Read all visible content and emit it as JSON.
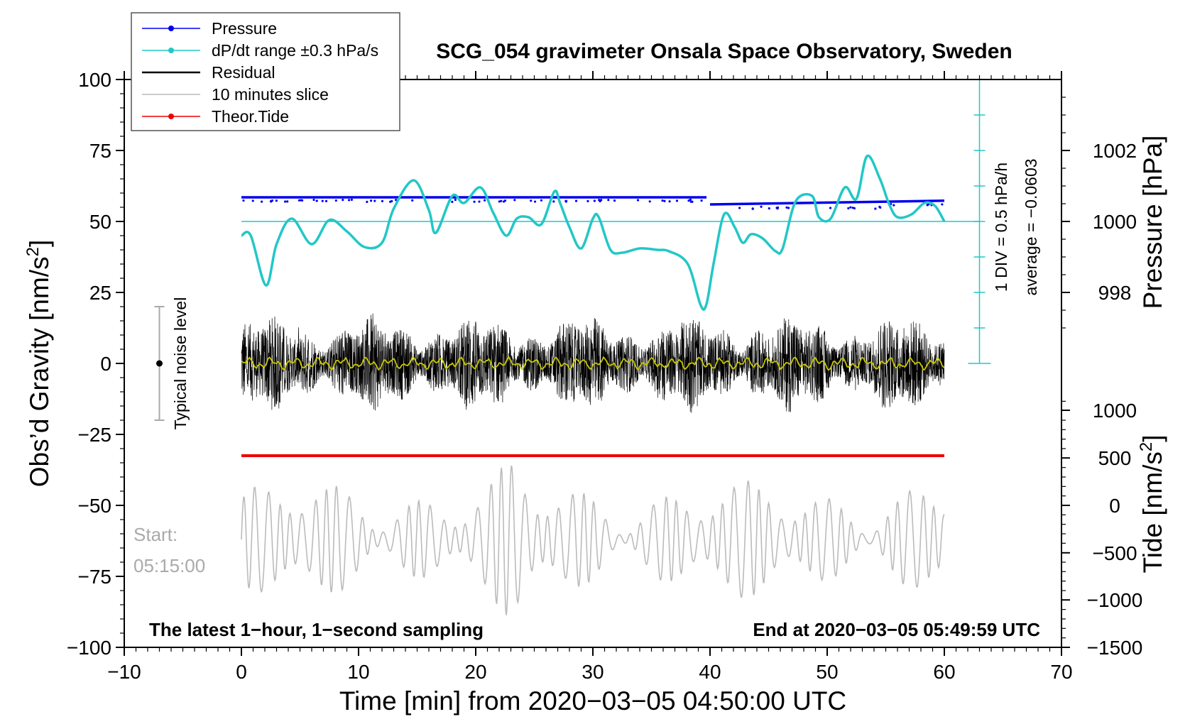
{
  "chart_data": {
    "type": "line",
    "title": "SCG_054 gravimeter Onsala Space Observatory, Sweden",
    "xlabel": "Time [min] from 2020−03−05 04:50:00 UTC",
    "ylabel": "Obs’d Gravity [nm/s2]",
    "ylabel_main": "Obs’d Gravity [nm/s",
    "ylabel_sup": "2",
    "ylabel_end": "]",
    "xlim": [
      -10,
      70
    ],
    "ylim": [
      -100,
      100
    ],
    "x_ticks": [
      -10,
      0,
      10,
      20,
      30,
      40,
      50,
      60,
      70
    ],
    "x_tick_labels": [
      "−10",
      "0",
      "10",
      "20",
      "30",
      "40",
      "50",
      "60",
      "70"
    ],
    "y_ticks": [
      -100,
      -75,
      -50,
      -25,
      0,
      25,
      50,
      75,
      100
    ],
    "y_tick_labels": [
      "−100",
      "−75",
      "−50",
      "−25",
      "0",
      "25",
      "50",
      "75",
      "100"
    ],
    "pressure_axis": {
      "label": "Pressure [hPa]",
      "ticks": [
        998,
        1000,
        1002
      ],
      "tick_labels": [
        "998",
        "1000",
        "1002"
      ],
      "maps_to_gravity": {
        "998": 25,
        "1000": 50,
        "1002": 75
      }
    },
    "tide_axis": {
      "label_main": "Tide [nm/s",
      "label_sup": "2",
      "label_end": "]",
      "ticks": [
        1000,
        500,
        0,
        -500,
        -1000,
        -1500
      ],
      "tick_labels": [
        "1000",
        "500",
        "0",
        "−500",
        "−1000",
        "−1500"
      ],
      "maps_to_gravity": {
        "1000": -16.5,
        "500": -33.3,
        "0": -50,
        "-500": -66.7,
        "-1000": -83.3,
        "-1500": -100
      }
    },
    "legend": {
      "placement": "top-left",
      "entries": [
        {
          "label": "Pressure",
          "color": "#0000ee",
          "marker": true
        },
        {
          "label": "dP/dt range ±0.3 hPa/s",
          "color": "#22c7c7",
          "marker": true
        },
        {
          "label": "Residual",
          "color": "#000000",
          "marker": false
        },
        {
          "label": "10 minutes slice",
          "color": "#bbbbbb",
          "marker": false
        },
        {
          "label": "Theor.Tide",
          "color": "#ee0000",
          "marker": true
        }
      ]
    },
    "series": [
      {
        "name": "Pressure",
        "color": "#0000ee",
        "unit": "gravity-axis",
        "x": [
          0,
          39.7,
          40,
          60
        ],
        "y": [
          58.5,
          58.5,
          56,
          57.3
        ]
      },
      {
        "name": "dP/dt",
        "color": "#22c7c7",
        "unit": "gravity-axis",
        "x": [
          0,
          0.8,
          2.1,
          3,
          4.3,
          6,
          7.5,
          9,
          10.5,
          12,
          13,
          14.7,
          16,
          16.6,
          18,
          19,
          20.4,
          21.5,
          22.6,
          23.5,
          24.5,
          25.6,
          26.7,
          27.2,
          28,
          29,
          30,
          30.5,
          31.5,
          32.5,
          34,
          35.5,
          36.5,
          38.1,
          39.2,
          39.7,
          40.3,
          41.2,
          42.1,
          42.8,
          43.5,
          44.5,
          45.6,
          46.2,
          47.3,
          48.7,
          49.3,
          50.3,
          51.5,
          52.5,
          53.4,
          54.5,
          55.3,
          56,
          57.2,
          58.3,
          59.2,
          60
        ],
        "y": [
          45,
          45,
          27.5,
          42,
          51,
          42,
          50.5,
          46.5,
          41,
          42.5,
          54.5,
          64.5,
          54,
          46,
          59,
          56.5,
          62,
          53,
          45,
          51,
          51.5,
          49,
          60.5,
          56.5,
          48,
          40.5,
          51,
          51.5,
          40,
          39,
          40.5,
          40,
          39.5,
          35,
          20.5,
          21,
          35,
          52.5,
          48,
          42.5,
          45.5,
          44,
          39.5,
          40.5,
          57,
          59,
          51.5,
          51,
          62,
          58,
          73,
          65,
          56,
          51.5,
          52.5,
          56.5,
          55.5,
          50
        ]
      },
      {
        "name": "dP/dt baseline",
        "color": "#22c7c7",
        "unit": "gravity-axis",
        "value": 50
      },
      {
        "name": "Residual",
        "color": "#000000",
        "unit": "nm/s2",
        "amplitude": 25,
        "typical_range": [
          -15,
          15
        ]
      },
      {
        "name": "Residual smoothed",
        "color": "#c8c800",
        "unit": "nm/s2",
        "value": 0
      },
      {
        "name": "Theor.Tide",
        "color": "#ee0000",
        "unit": "gravity-axis",
        "value": -32.5
      },
      {
        "name": "10 minutes slice",
        "color": "#bbbbbb",
        "unit": "gravity-axis",
        "center": -62,
        "range": [
          -86,
          -37
        ]
      }
    ],
    "typical_noise_level": {
      "label": "Typical noise level",
      "x": -7,
      "center": 0,
      "range": [
        -20,
        20
      ]
    },
    "dpdt_scale": {
      "label_div": "1 DIV = 0.5 hPa/h",
      "label_avg": "average = −0.0603",
      "x": 63,
      "range": [
        0,
        100
      ],
      "div": 12.5
    },
    "slice_start_label": "Start:",
    "slice_start_time": "05:15:00",
    "footer_left": "The latest 1−hour, 1−second sampling",
    "footer_right": "End at 2020−03−05 05:49:59 UTC"
  }
}
